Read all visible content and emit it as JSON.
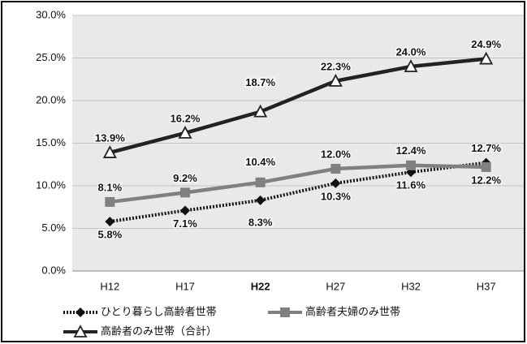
{
  "chart_data": {
    "type": "line",
    "categories": [
      "H12",
      "H17",
      "H22",
      "H27",
      "H32",
      "H37"
    ],
    "ylim": [
      0,
      30
    ],
    "yticks": [
      {
        "value": 0,
        "label": "0.0%"
      },
      {
        "value": 5,
        "label": "5.0%"
      },
      {
        "value": 10,
        "label": "10.0%"
      },
      {
        "value": 15,
        "label": "15.0%"
      },
      {
        "value": 20,
        "label": "20.0%"
      },
      {
        "value": 25,
        "label": "25.0%"
      },
      {
        "value": 30,
        "label": "30.0%"
      }
    ],
    "grid": true,
    "emphasis_index": 2,
    "series": [
      {
        "name": "ひとり暮らし高齢者世帯",
        "color": "#111111",
        "marker": "diamond",
        "dash": "dotted",
        "values": [
          5.8,
          7.1,
          8.3,
          10.3,
          11.6,
          12.7
        ],
        "value_labels": [
          "5.8%",
          "7.1%",
          "8.3%",
          "10.3%",
          "11.6%",
          "12.7%"
        ]
      },
      {
        "name": "高齢者夫婦のみ世帯",
        "color": "#808080",
        "marker": "square",
        "dash": "solid",
        "values": [
          8.1,
          9.2,
          10.4,
          12.0,
          12.4,
          12.2
        ],
        "value_labels": [
          "8.1%",
          "9.2%",
          "10.4%",
          "12.0%",
          "12.4%",
          "12.2%"
        ]
      },
      {
        "name": "高齢者のみ世帯（合計）",
        "color": "#222222",
        "marker": "triangle",
        "dash": "solid",
        "values": [
          13.9,
          16.2,
          18.7,
          22.3,
          24.0,
          24.9
        ],
        "value_labels": [
          "13.9%",
          "16.2%",
          "18.7%",
          "22.3%",
          "24.0%",
          "24.9%"
        ]
      }
    ]
  }
}
